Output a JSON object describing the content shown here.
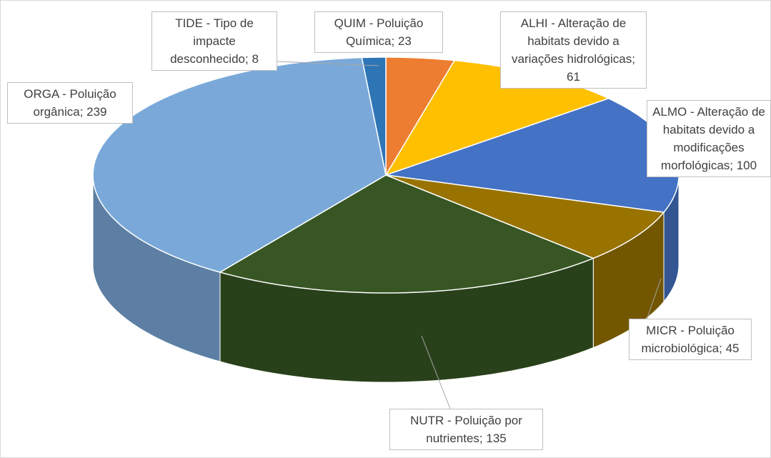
{
  "chart_data": {
    "type": "pie3d",
    "values": [
      23,
      61,
      100,
      45,
      135,
      239,
      8
    ],
    "value_labels": [
      "QUIM - Poluição Química; 23",
      "ALHI - Alteração de habitats devido a variações hidrológicas; 61",
      "ALMO - Alteração de habitats devido a modificações morfológicas; 100",
      "MICR - Poluição microbiológica; 45",
      "NUTR - Poluição por nutrientes; 135",
      "ORGA - Poluição orgânica; 239",
      "TIDE - Tipo de impacte desconhecido; 8"
    ],
    "colors": [
      "#ed7d31",
      "#ffc000",
      "#4472c4",
      "#997300",
      "#375623",
      "#7aa9d9",
      "#2e75b6"
    ]
  }
}
